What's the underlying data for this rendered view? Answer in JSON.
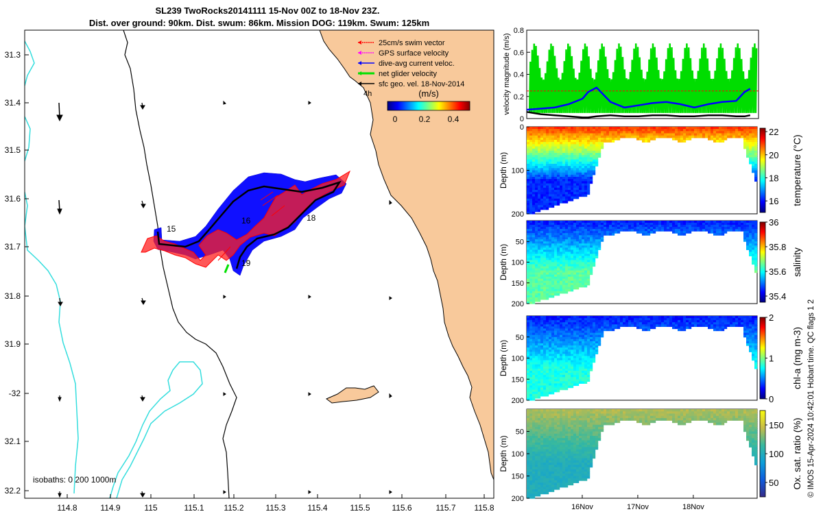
{
  "title": {
    "line1": "SL239 TwoRocks20141111 15-Nov 00Z to 18-Nov 23Z.",
    "line2": "Dist. over ground: 90km. Dist. swum: 86km. Mission DOG: 119km. Swum: 125km"
  },
  "copyright": "© IMOS 15-Apr-2024 10:42:01 Hobart time. QC flags 1  2",
  "map": {
    "lon_ticks": [
      "114.8",
      "114.9",
      "115",
      "115.1",
      "115.2",
      "115.3",
      "115.4",
      "115.5",
      "115.6",
      "115.7",
      "115.8"
    ],
    "lat_ticks": [
      "31.3",
      "31.4",
      "31.5",
      "31.6",
      "31.7",
      "31.8",
      "31.9",
      "-32",
      "32.1",
      "32.2"
    ],
    "isobaths_label": "isobaths: 0   200  1000m",
    "day_labels": [
      {
        "text": "15",
        "lon": 115.05,
        "lat": -31.66
      },
      {
        "text": "16",
        "lon": 115.27,
        "lat": -31.64
      },
      {
        "text": "18",
        "lon": 115.42,
        "lat": -31.62
      },
      {
        "text": "19",
        "lon": 115.27,
        "lat": -31.73
      }
    ],
    "legend": {
      "items": [
        {
          "label": "25cm/s swim vector",
          "color": "#ff0000"
        },
        {
          "label": "GPS surface velocity",
          "color": "#ff00ff"
        },
        {
          "label": "dive-avg current veloc.",
          "color": "#0000ff"
        },
        {
          "label": "net glider velocity",
          "color": "#00e000"
        },
        {
          "label": "sfc geo. vel. 18-Nov-2014",
          "color": "#000000"
        }
      ],
      "subtext": "4h",
      "colorbar_unit": "(m/s)",
      "colorbar_ticks": [
        "0",
        "0.2",
        "0.4"
      ]
    },
    "colors": {
      "land": "#f8c99b",
      "isobath200": "#000000",
      "isobath1000": "#33dddd"
    }
  },
  "chart_data": [
    {
      "type": "line",
      "ylabel": "velocity magnitude (m/s)",
      "ylim": [
        0,
        0.8
      ],
      "yticks": [
        "0",
        "0.2",
        "0.4",
        "0.6",
        "0.8"
      ],
      "x_days": [
        15.0,
        15.25,
        15.5,
        15.75,
        16.0,
        16.1,
        16.25,
        16.5,
        16.75,
        17.0,
        17.25,
        17.5,
        17.75,
        18.0,
        18.25,
        18.5,
        18.75,
        18.9,
        19.0
      ],
      "series": [
        {
          "name": "dive-avg current veloc.",
          "color": "#0000ff",
          "values": [
            0.08,
            0.09,
            0.1,
            0.13,
            0.18,
            0.24,
            0.28,
            0.15,
            0.1,
            0.12,
            0.14,
            0.15,
            0.13,
            0.1,
            0.13,
            0.15,
            0.16,
            0.24,
            0.27
          ]
        },
        {
          "name": "sfc geo. vel.",
          "color": "#000000",
          "values": [
            0.06,
            0.04,
            0.03,
            0.02,
            0.01,
            0.01,
            0.02,
            0.03,
            0.02,
            0.02,
            0.03,
            0.03,
            0.02,
            0.02,
            0.03,
            0.03,
            0.02,
            0.02,
            0.03
          ]
        }
      ],
      "oscillation": {
        "name": "net glider velocity",
        "color": "#00dd00",
        "low": 0.05,
        "high_range": [
          0.35,
          0.68
        ]
      },
      "reference_line": {
        "name": "25cm/s swim vector",
        "color": "#ff0000",
        "value": 0.25
      }
    },
    {
      "type": "heatmap",
      "ylabel": "Depth (m)",
      "colorbar_label": "temperature (°C)",
      "colorbar_ticks": [
        "16",
        "18",
        "20",
        "22"
      ],
      "clim": [
        15,
        22.3
      ],
      "yticks": [
        "0",
        "100",
        "200"
      ],
      "surface_value": 21.0,
      "bottom_value": 16.2
    },
    {
      "type": "heatmap",
      "ylabel": "Depth (m)",
      "colorbar_label": "salinity",
      "colorbar_ticks": [
        "35.4",
        "35.6",
        "35.8",
        "36"
      ],
      "clim": [
        35.35,
        36.0
      ],
      "yticks": [
        "50",
        "100",
        "150",
        "200"
      ],
      "surface_value": 35.45,
      "bottom_value": 35.65
    },
    {
      "type": "heatmap",
      "ylabel": "Depth (m)",
      "colorbar_label": "chl-a (mg m-3)",
      "colorbar_ticks": [
        "0",
        "1",
        "2"
      ],
      "clim": [
        0,
        2
      ],
      "yticks": [
        "50",
        "100",
        "150",
        "200"
      ],
      "surface_value": 0.3,
      "bottom_value": 0.8
    },
    {
      "type": "heatmap",
      "ylabel": "Depth (m)",
      "colorbar_label": "Ox. sat. ratio (%)",
      "colorbar_ticks": [
        "50",
        "100",
        "150"
      ],
      "clim": [
        25,
        175
      ],
      "yticks": [
        "50",
        "100",
        "150",
        "200"
      ],
      "surface_value": 140,
      "bottom_value": 100,
      "xticks": [
        "16Nov",
        "17Nov",
        "18Nov"
      ],
      "xtick_days": [
        16,
        17,
        18
      ]
    }
  ]
}
